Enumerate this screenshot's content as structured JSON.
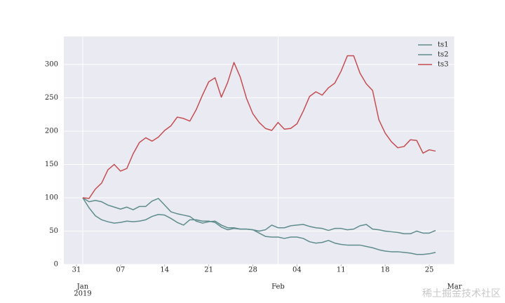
{
  "chart_data": {
    "type": "line",
    "x": [
      "2019-01-01",
      "2019-01-02",
      "2019-01-03",
      "2019-01-04",
      "2019-01-05",
      "2019-01-06",
      "2019-01-07",
      "2019-01-08",
      "2019-01-09",
      "2019-01-10",
      "2019-01-11",
      "2019-01-12",
      "2019-01-13",
      "2019-01-14",
      "2019-01-15",
      "2019-01-16",
      "2019-01-17",
      "2019-01-18",
      "2019-01-19",
      "2019-01-20",
      "2019-01-21",
      "2019-01-22",
      "2019-01-23",
      "2019-01-24",
      "2019-01-25",
      "2019-01-26",
      "2019-01-27",
      "2019-01-28",
      "2019-01-29",
      "2019-01-30",
      "2019-01-31",
      "2019-02-01",
      "2019-02-02",
      "2019-02-03",
      "2019-02-04",
      "2019-02-05",
      "2019-02-06",
      "2019-02-07",
      "2019-02-08",
      "2019-02-09",
      "2019-02-10",
      "2019-02-11",
      "2019-02-12",
      "2019-02-13",
      "2019-02-14",
      "2019-02-15",
      "2019-02-16",
      "2019-02-17",
      "2019-02-18",
      "2019-02-19",
      "2019-02-20",
      "2019-02-21",
      "2019-02-22",
      "2019-02-23",
      "2019-02-24",
      "2019-02-25",
      "2019-02-26"
    ],
    "series": [
      {
        "name": "ts1",
        "color": "#5f8c8c",
        "values": [
          100,
          94,
          96,
          94,
          89,
          86,
          83,
          86,
          82,
          87,
          87,
          95,
          99,
          89,
          79,
          76,
          74,
          72,
          65,
          62,
          64,
          65,
          59,
          55,
          55,
          53,
          53,
          52,
          50,
          52,
          59,
          55,
          55,
          58,
          59,
          60,
          57,
          55,
          54,
          51,
          54,
          54,
          52,
          53,
          58,
          60,
          53,
          52,
          50,
          49,
          48,
          46,
          46,
          50,
          47,
          47,
          51
        ]
      },
      {
        "name": "ts2",
        "color": "#5f8c8c",
        "values": [
          100,
          85,
          73,
          67,
          64,
          62,
          63,
          65,
          64,
          65,
          67,
          72,
          75,
          74,
          69,
          63,
          59,
          67,
          67,
          65,
          65,
          63,
          56,
          52,
          54,
          53,
          53,
          52,
          47,
          42,
          41,
          41,
          39,
          41,
          41,
          39,
          34,
          32,
          33,
          36,
          32,
          30,
          29,
          29,
          29,
          27,
          25,
          22,
          20,
          19,
          19,
          18,
          17,
          15,
          15,
          16,
          18
        ]
      },
      {
        "name": "ts3",
        "color": "#c44e52",
        "values": [
          100,
          99,
          113,
          122,
          142,
          150,
          140,
          144,
          166,
          183,
          190,
          185,
          191,
          201,
          208,
          221,
          219,
          215,
          232,
          254,
          274,
          280,
          251,
          273,
          303,
          281,
          249,
          226,
          213,
          204,
          201,
          213,
          203,
          204,
          211,
          230,
          252,
          259,
          254,
          265,
          272,
          290,
          313,
          313,
          287,
          271,
          261,
          217,
          197,
          184,
          175,
          177,
          187,
          186,
          167,
          172,
          170
        ]
      }
    ],
    "xlim": [
      "2018-12-29",
      "2019-03-01"
    ],
    "xticks": [
      {
        "value": "2018-12-31",
        "label": "31"
      },
      {
        "value": "2019-01-07",
        "label": "07"
      },
      {
        "value": "2019-01-14",
        "label": "14"
      },
      {
        "value": "2019-01-21",
        "label": "21"
      },
      {
        "value": "2019-01-28",
        "label": "28"
      },
      {
        "value": "2019-02-04",
        "label": "04"
      },
      {
        "value": "2019-02-11",
        "label": "11"
      },
      {
        "value": "2019-02-18",
        "label": "18"
      },
      {
        "value": "2019-02-25",
        "label": "25"
      }
    ],
    "xticks_major": [
      {
        "value": "2019-01-01",
        "label": "Jan"
      },
      {
        "value": "2019-02-01",
        "label": "Feb"
      },
      {
        "value": "2019-03-01",
        "label": "Mar"
      }
    ],
    "x_year_label": "2019",
    "ylim": [
      0,
      342
    ],
    "yticks": [
      0,
      50,
      100,
      150,
      200,
      250,
      300
    ],
    "grid": true,
    "legend": "upper right",
    "watermark": "稀土掘金技术社区"
  }
}
